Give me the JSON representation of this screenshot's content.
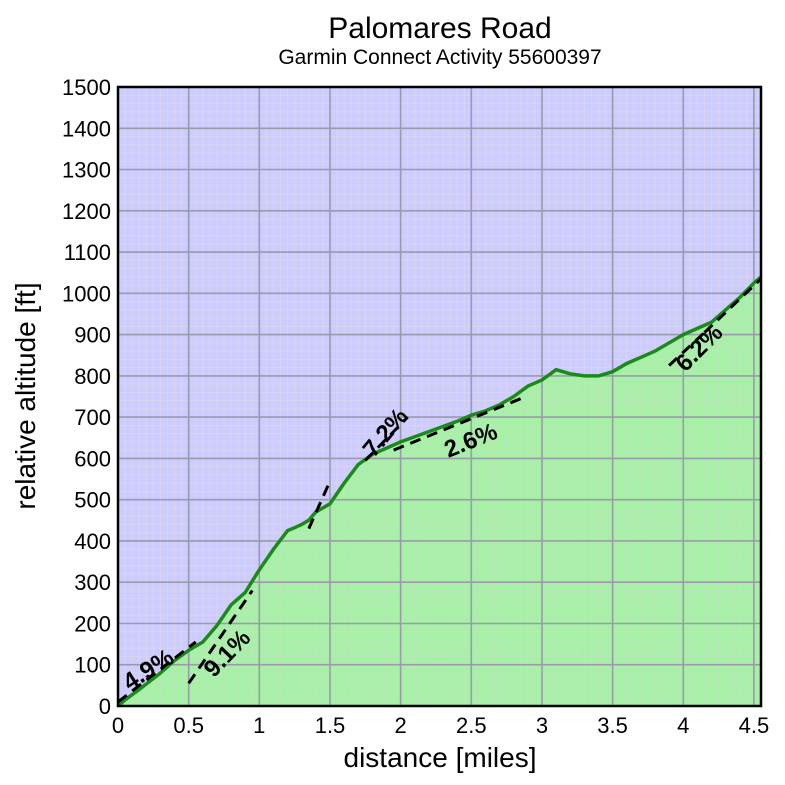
{
  "chart_data": {
    "type": "area",
    "title": "Palomares Road",
    "subtitle": "Garmin Connect Activity 55600397",
    "xlabel": "distance [miles]",
    "ylabel": "relative altitude [ft]",
    "xlim": [
      0,
      4.55
    ],
    "ylim": [
      0,
      1500
    ],
    "xticks": [
      "0",
      "0.5",
      "1",
      "1.5",
      "2",
      "2.5",
      "3",
      "3.5",
      "4",
      "4.5"
    ],
    "yticks": [
      "0",
      "100",
      "200",
      "300",
      "400",
      "500",
      "600",
      "700",
      "800",
      "900",
      "1000",
      "1100",
      "1200",
      "1300",
      "1400",
      "1500"
    ],
    "grid": true,
    "colors": {
      "plot_background": "#ccccff",
      "fill": "#a8f0a8",
      "line": "#1a8a1a",
      "major_grid": "#9a9aaa",
      "minor_grid": "#b8e8b8"
    },
    "series": [
      {
        "x": [
          0,
          0.05,
          0.15,
          0.3,
          0.4,
          0.5,
          0.6,
          0.7,
          0.8,
          0.9,
          1.0,
          1.1,
          1.2,
          1.25,
          1.3,
          1.35,
          1.4,
          1.5,
          1.6,
          1.7,
          1.8,
          1.9,
          2.0,
          2.2,
          2.4,
          2.5,
          2.6,
          2.7,
          2.8,
          2.9,
          3.0,
          3.1,
          3.2,
          3.3,
          3.4,
          3.5,
          3.6,
          3.7,
          3.8,
          3.9,
          4.0,
          4.1,
          4.2,
          4.3,
          4.4,
          4.5,
          4.55
        ],
        "y": [
          0,
          15,
          40,
          80,
          110,
          135,
          155,
          195,
          245,
          275,
          330,
          380,
          425,
          432,
          440,
          450,
          470,
          490,
          540,
          585,
          610,
          625,
          640,
          665,
          690,
          705,
          715,
          730,
          750,
          775,
          790,
          815,
          805,
          800,
          800,
          810,
          830,
          845,
          860,
          880,
          900,
          915,
          930,
          960,
          990,
          1025,
          1040
        ]
      }
    ],
    "annotations": [
      {
        "text": "4.9%",
        "x1": 0.0,
        "y1": 10,
        "x2": 0.55,
        "y2": 155
      },
      {
        "text": "9.1%",
        "x1": 0.5,
        "y1": 55,
        "x2": 0.95,
        "y2": 280
      },
      {
        "text": "7.2%",
        "x1": 1.35,
        "y1": 430,
        "x2": 1.5,
        "y2": 545
      },
      {
        "text": "7.2%",
        "x1": 1.75,
        "y1": 595,
        "x2": 2.05,
        "y2": 700
      },
      {
        "text": "2.6%",
        "x1": 1.95,
        "y1": 620,
        "x2": 2.85,
        "y2": 745
      },
      {
        "text": "6.2%",
        "x1": 3.9,
        "y1": 825,
        "x2": 4.15,
        "y2": 905
      },
      {
        "text": "6.2%",
        "x1": 4.15,
        "y1": 905,
        "x2": 4.55,
        "y2": 1035
      }
    ],
    "labeled_annotations": [
      {
        "text": "4.9%",
        "at_x": 0.22,
        "at_y": 85,
        "angle": -33
      },
      {
        "text": "9.1%",
        "at_x": 0.78,
        "at_y": 125,
        "angle": -46
      },
      {
        "text": "7.2%",
        "at_x": 1.9,
        "at_y": 660,
        "angle": -50
      },
      {
        "text": "2.6%",
        "at_x": 2.5,
        "at_y": 640,
        "angle": -22
      },
      {
        "text": "6.2%",
        "at_x": 4.12,
        "at_y": 865,
        "angle": -45
      }
    ]
  }
}
